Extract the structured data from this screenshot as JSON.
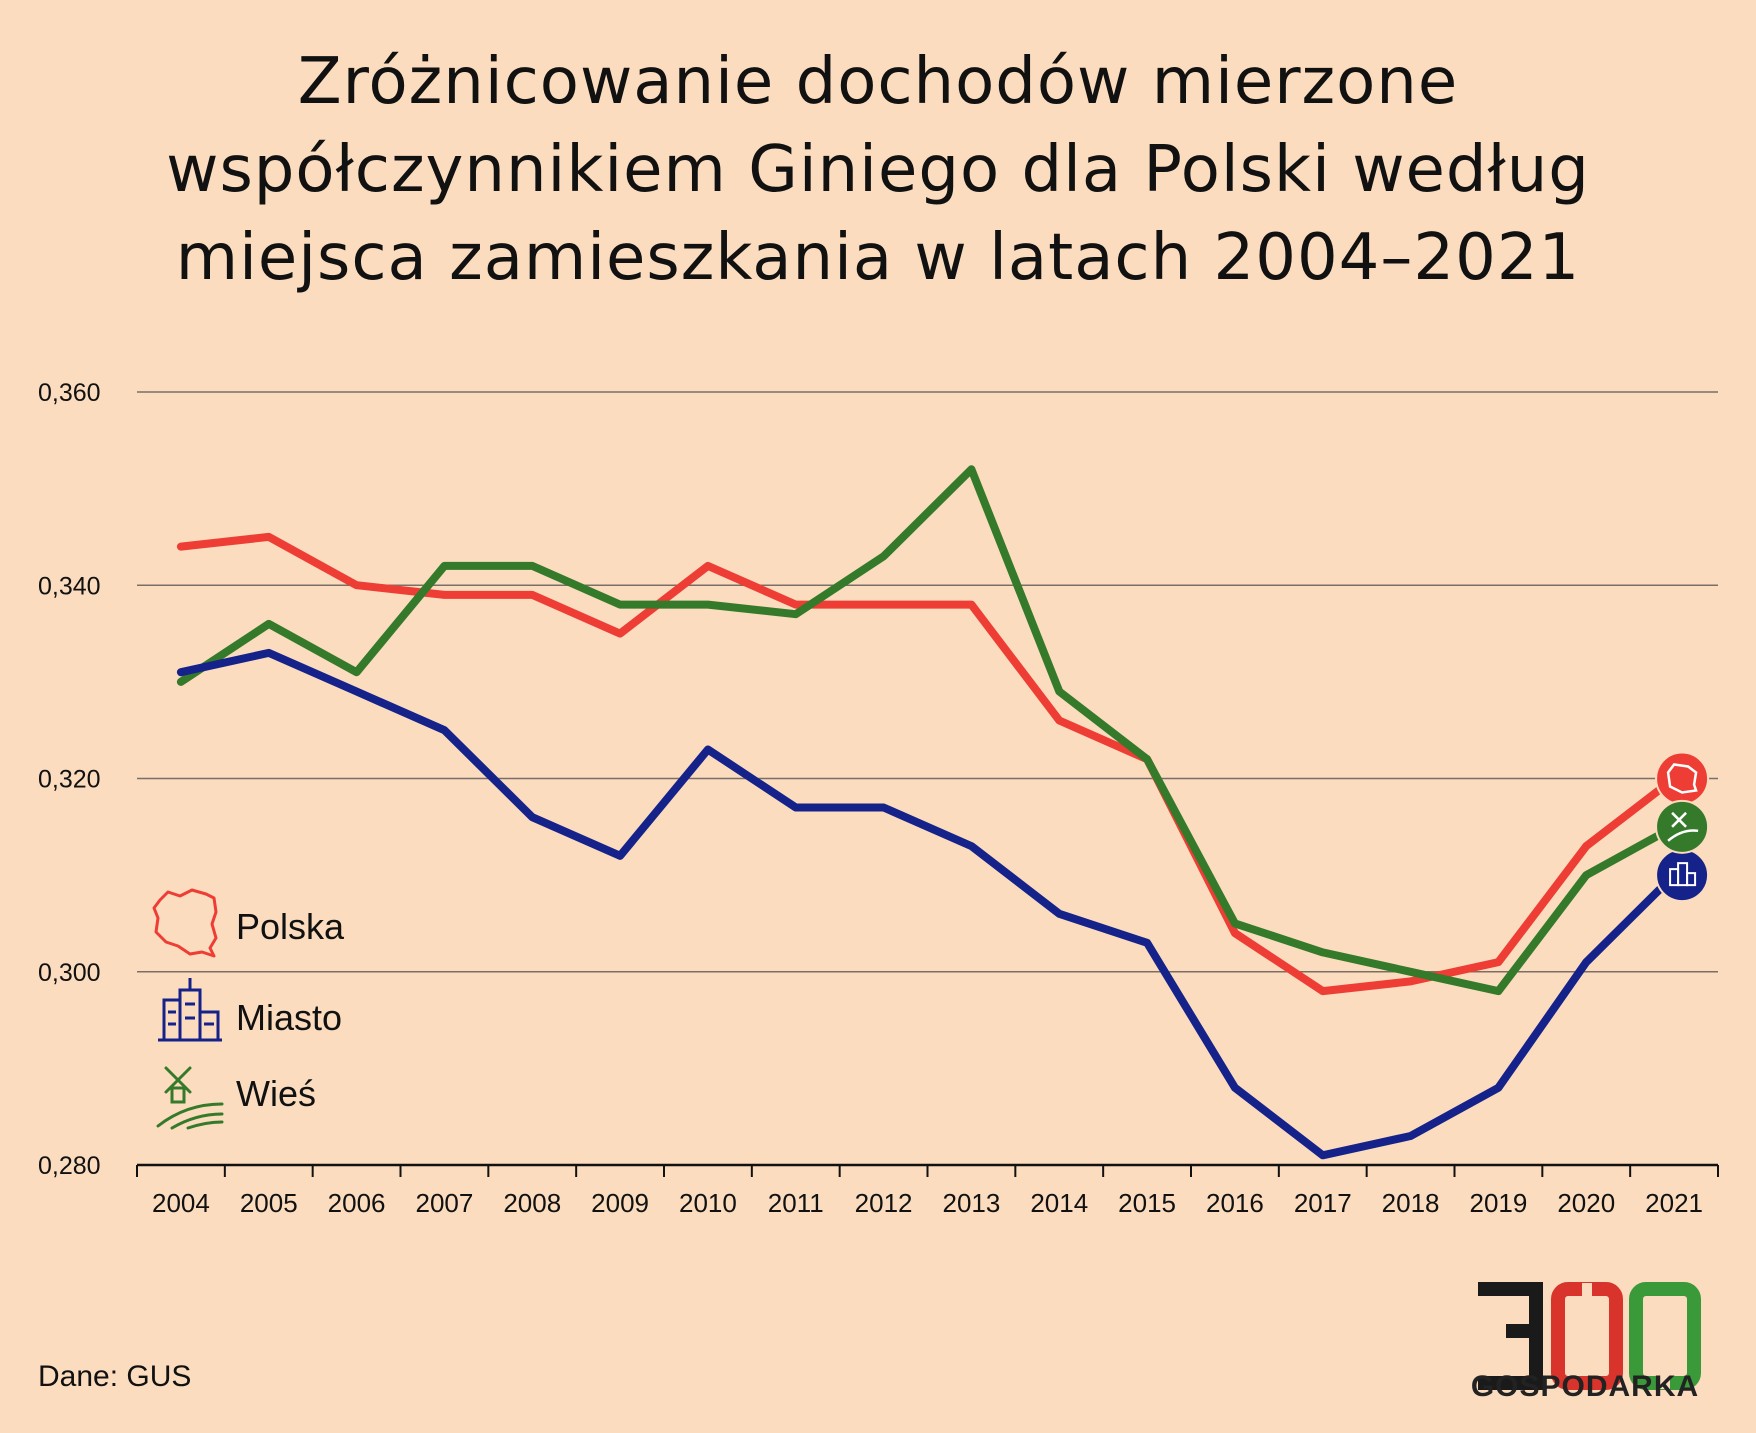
{
  "title_lines": [
    "Zróżnicowanie dochodów mierzone",
    "współczynnikiem Giniego dla Polski według",
    "miejsca zamieszkania w latach 2004–2021"
  ],
  "source": "Dane: GUS",
  "logo": {
    "number": "300",
    "subtitle": "GOSPODARKA"
  },
  "chart_data": {
    "type": "line",
    "title": "Zróżnicowanie dochodów mierzone współczynnikiem Giniego dla Polski według miejsca zamieszkania w latach 2004–2021",
    "categories": [
      "2004",
      "2005",
      "2006",
      "2007",
      "2008",
      "2009",
      "2010",
      "2011",
      "2012",
      "2013",
      "2014",
      "2015",
      "2016",
      "2017",
      "2018",
      "2019",
      "2020",
      "2021"
    ],
    "ylim": [
      0.28,
      0.36
    ],
    "yticks": [
      0.28,
      0.3,
      0.32,
      0.34,
      0.36
    ],
    "ytick_labels": [
      "0,280",
      "0,300",
      "0,320",
      "0,340",
      "0,360"
    ],
    "grid": true,
    "legend_position": "left",
    "series": [
      {
        "name": "Polska",
        "color": "#ee3d35",
        "icon": "poland-map-icon",
        "values": [
          0.344,
          0.345,
          0.34,
          0.339,
          0.339,
          0.335,
          0.342,
          0.338,
          0.338,
          0.338,
          0.326,
          0.322,
          0.304,
          0.298,
          0.299,
          0.301,
          0.313,
          0.32
        ]
      },
      {
        "name": "Miasto",
        "color": "#15228a",
        "icon": "city-buildings-icon",
        "values": [
          0.331,
          0.333,
          0.329,
          0.325,
          0.316,
          0.312,
          0.323,
          0.317,
          0.317,
          0.313,
          0.306,
          0.303,
          0.288,
          0.281,
          0.283,
          0.288,
          0.301,
          0.31
        ]
      },
      {
        "name": "Wieś",
        "color": "#347a2a",
        "icon": "windmill-field-icon",
        "values": [
          0.33,
          0.336,
          0.331,
          0.342,
          0.342,
          0.338,
          0.338,
          0.337,
          0.343,
          0.352,
          0.329,
          0.322,
          0.305,
          0.302,
          0.3,
          0.298,
          0.31,
          0.315
        ]
      }
    ]
  }
}
